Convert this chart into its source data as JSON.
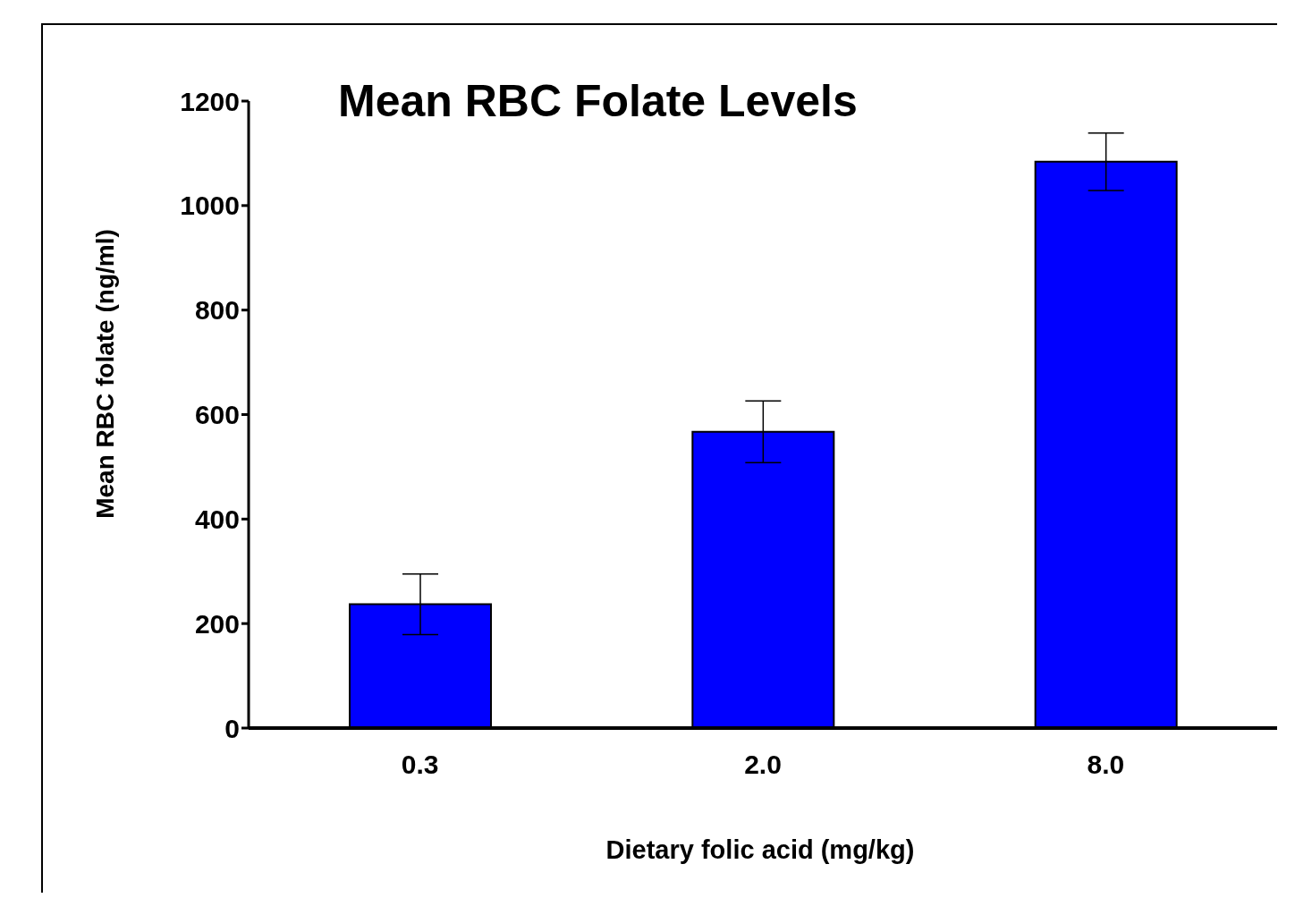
{
  "chart_data": {
    "type": "bar",
    "title": "Mean RBC Folate Levels",
    "xlabel": "Dietary  folic  acid (mg/kg)",
    "ylabel": "Mean RBC folate  (ng/ml)",
    "categories": [
      "0.3",
      "2.0",
      "8.0"
    ],
    "values": [
      237,
      567,
      1084
    ],
    "errors": [
      58,
      59,
      55
    ],
    "color": "#0000ff",
    "ylim": [
      0,
      1200
    ],
    "yticks": [
      0,
      200,
      400,
      600,
      800,
      1000,
      1200
    ],
    "grid": false,
    "legend": false
  }
}
